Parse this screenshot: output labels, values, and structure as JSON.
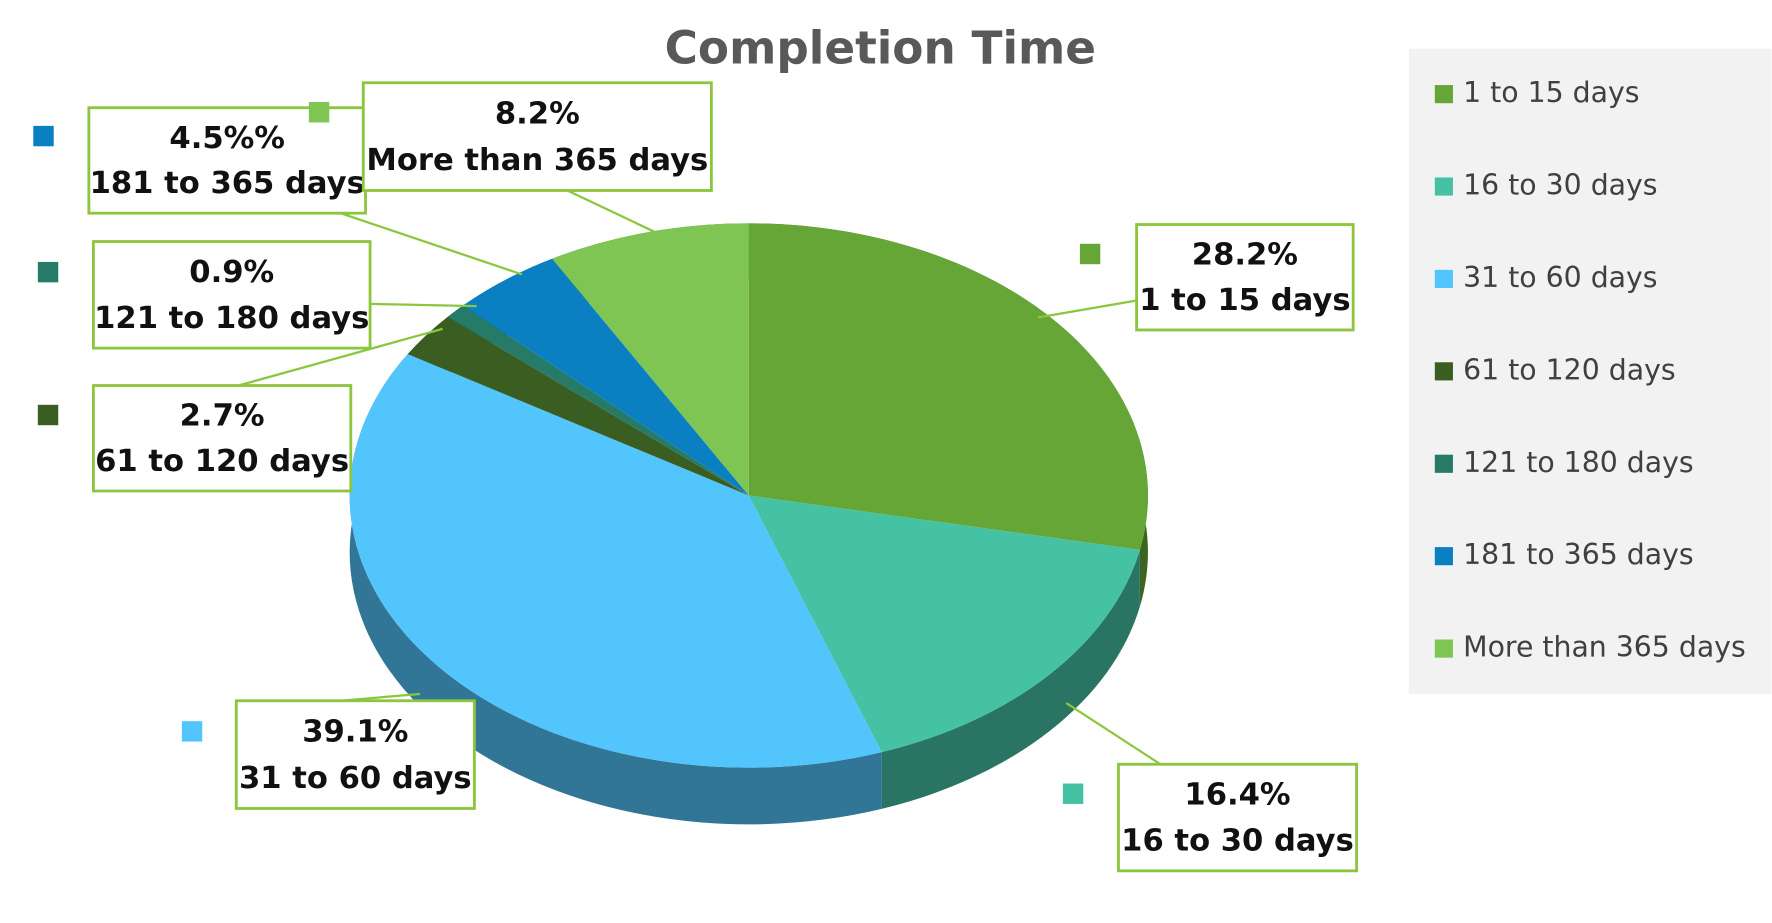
{
  "chart_data": {
    "type": "pie",
    "title": "Completion Time",
    "categories": [
      "1 to 15 days",
      "16 to 30 days",
      "31 to 60 days",
      "61 to 120 days",
      "121 to 180 days",
      "181 to 365 days",
      "More than 365 days"
    ],
    "values": [
      28.2,
      16.4,
      39.1,
      2.7,
      0.9,
      4.5,
      8.2
    ],
    "value_labels": [
      "28.2%",
      "16.4%",
      "39.1%",
      "2.7%",
      "0.9%",
      "4.5%%",
      "8.2%"
    ],
    "colors": [
      "#65a636",
      "#45c1a4",
      "#52c5fc",
      "#3a5e22",
      "#267a68",
      "#0a80c2",
      "#7ec554"
    ],
    "legend": "right"
  }
}
